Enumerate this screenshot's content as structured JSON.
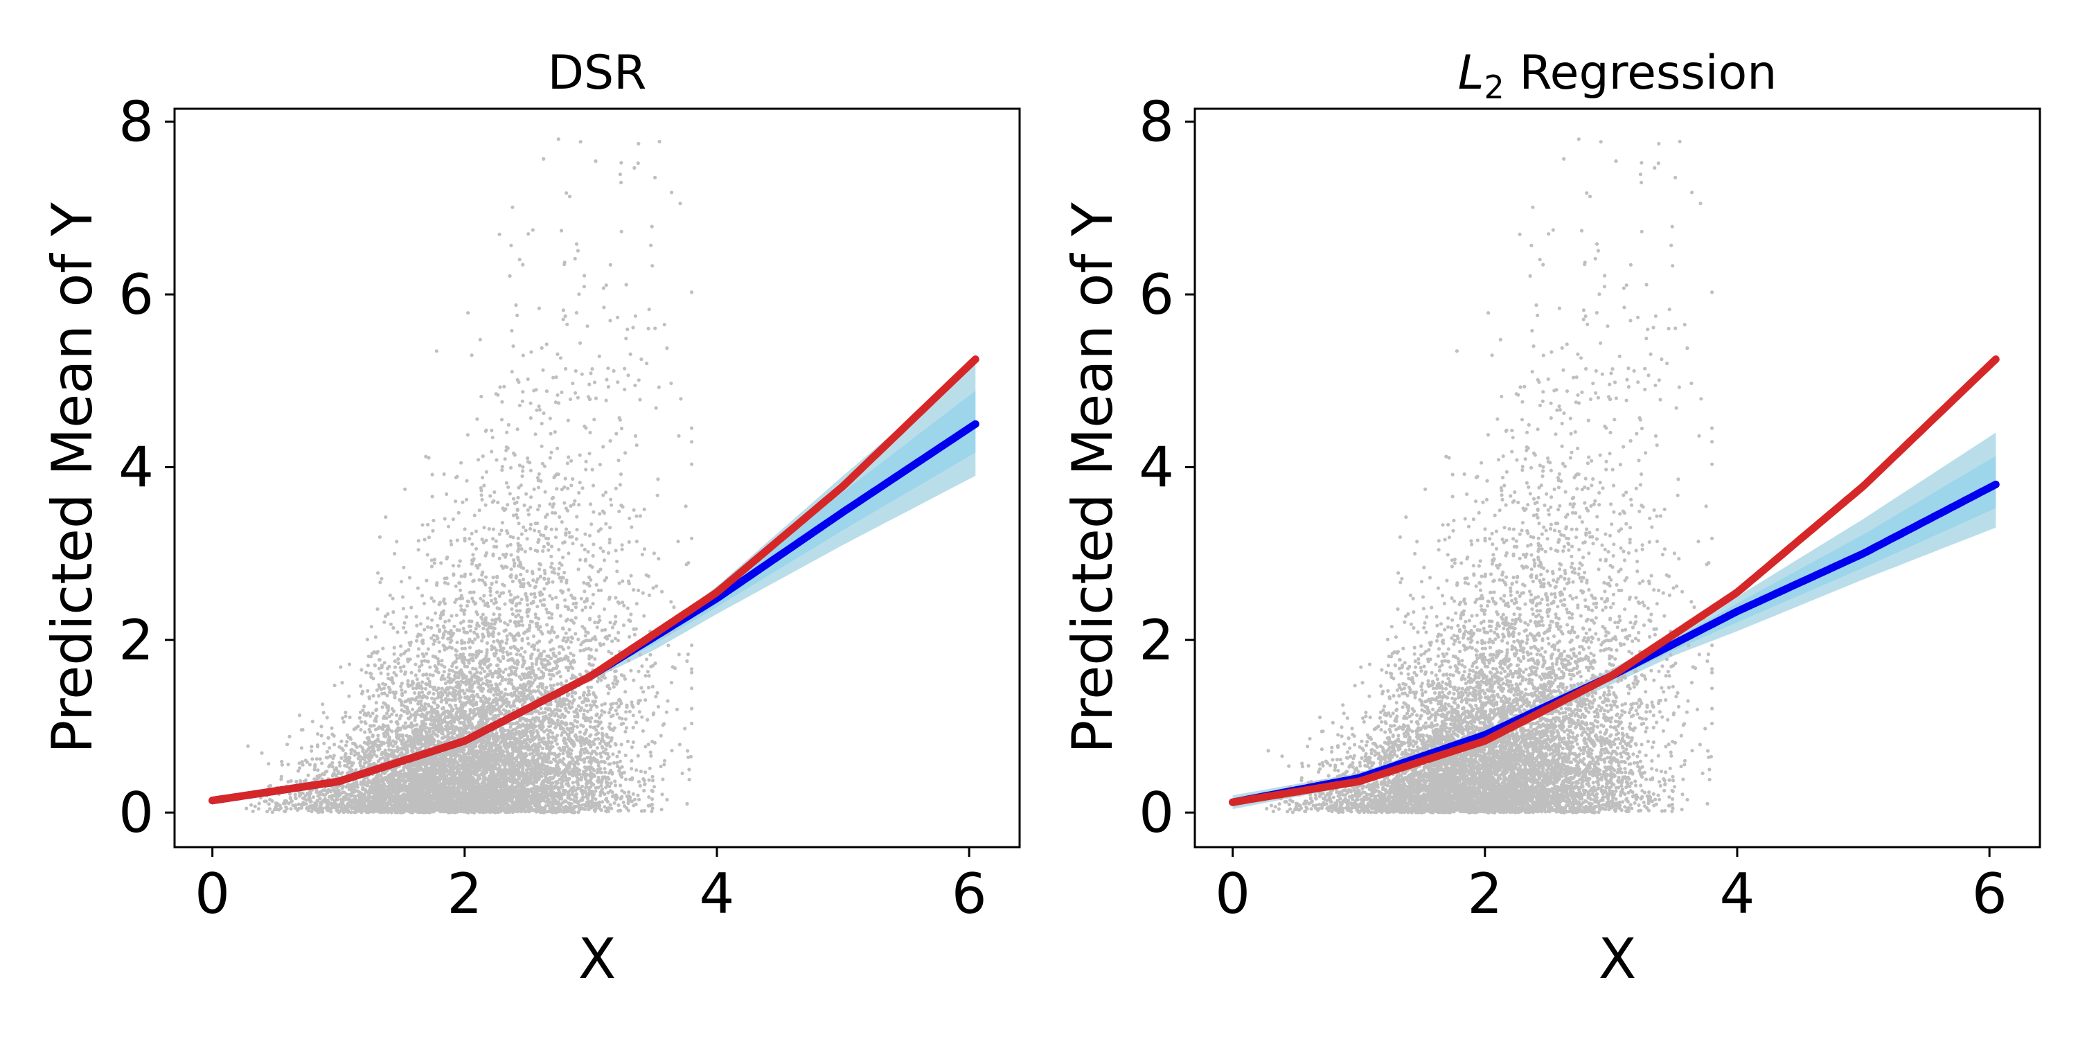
{
  "colors": {
    "scatter": "#bfbfbf",
    "band": "#add8e6",
    "band_inner": "#87ceeb",
    "predicted": "#0000ee",
    "true_mean": "#d62728"
  },
  "chart_data": [
    {
      "type": "scatter+line",
      "title": "DSR",
      "title_subscript": "",
      "title_rest": "",
      "xlabel": "X",
      "ylabel": "Predicted Mean of Y",
      "xlim": [
        -0.3,
        6.4
      ],
      "ylim": [
        -0.4,
        8.15
      ],
      "xticks": [
        "0",
        "2",
        "4",
        "6"
      ],
      "yticks": [
        "0",
        "2",
        "4",
        "6",
        "8"
      ],
      "grid": false,
      "scatter": {
        "n_points": 9000,
        "x_range": [
          0,
          3.8
        ],
        "y_max": 7.8
      },
      "series": [
        {
          "role": "true_mean",
          "x": [
            0,
            1,
            2,
            3,
            4,
            5,
            6.05
          ],
          "y": [
            0.14,
            0.36,
            0.83,
            1.58,
            2.55,
            3.78,
            5.25
          ]
        },
        {
          "role": "predicted",
          "x": [
            0,
            1,
            2,
            3,
            4,
            5,
            6.05
          ],
          "y": [
            0.14,
            0.36,
            0.83,
            1.58,
            2.48,
            3.48,
            4.5
          ]
        },
        {
          "role": "band_upper",
          "x": [
            0,
            1,
            2,
            3,
            3.5,
            4,
            5,
            6.05
          ],
          "y": [
            0.16,
            0.38,
            0.86,
            1.63,
            2.05,
            2.62,
            3.9,
            5.2
          ]
        },
        {
          "role": "band_lower",
          "x": [
            0,
            1,
            2,
            3,
            3.5,
            4,
            5,
            6.05
          ],
          "y": [
            0.12,
            0.34,
            0.8,
            1.53,
            1.88,
            2.3,
            3.1,
            3.9
          ]
        }
      ]
    },
    {
      "type": "scatter+line",
      "title": "L",
      "title_subscript": "2",
      "title_rest": " Regression",
      "xlabel": "X",
      "ylabel": "Predicted Mean of Y",
      "xlim": [
        -0.3,
        6.4
      ],
      "ylim": [
        -0.4,
        8.15
      ],
      "xticks": [
        "0",
        "2",
        "4",
        "6"
      ],
      "yticks": [
        "0",
        "2",
        "4",
        "6",
        "8"
      ],
      "grid": false,
      "scatter": {
        "n_points": 9000,
        "x_range": [
          0,
          3.8
        ],
        "y_max": 7.8
      },
      "series": [
        {
          "role": "true_mean",
          "x": [
            0,
            1,
            2,
            3,
            4,
            5,
            6.05
          ],
          "y": [
            0.12,
            0.36,
            0.83,
            1.58,
            2.55,
            3.78,
            5.25
          ]
        },
        {
          "role": "predicted",
          "x": [
            0,
            1,
            2,
            3,
            4,
            5,
            6.05
          ],
          "y": [
            0.12,
            0.4,
            0.9,
            1.58,
            2.33,
            3.0,
            3.8
          ]
        },
        {
          "role": "band_upper",
          "x": [
            0,
            1,
            2,
            3,
            3.5,
            4,
            5,
            6.05
          ],
          "y": [
            0.2,
            0.46,
            0.96,
            1.66,
            2.05,
            2.5,
            3.4,
            4.4
          ]
        },
        {
          "role": "band_lower",
          "x": [
            0,
            1,
            2,
            3,
            3.5,
            4,
            5,
            6.05
          ],
          "y": [
            0.04,
            0.32,
            0.82,
            1.48,
            1.82,
            2.1,
            2.7,
            3.3
          ]
        }
      ]
    }
  ]
}
